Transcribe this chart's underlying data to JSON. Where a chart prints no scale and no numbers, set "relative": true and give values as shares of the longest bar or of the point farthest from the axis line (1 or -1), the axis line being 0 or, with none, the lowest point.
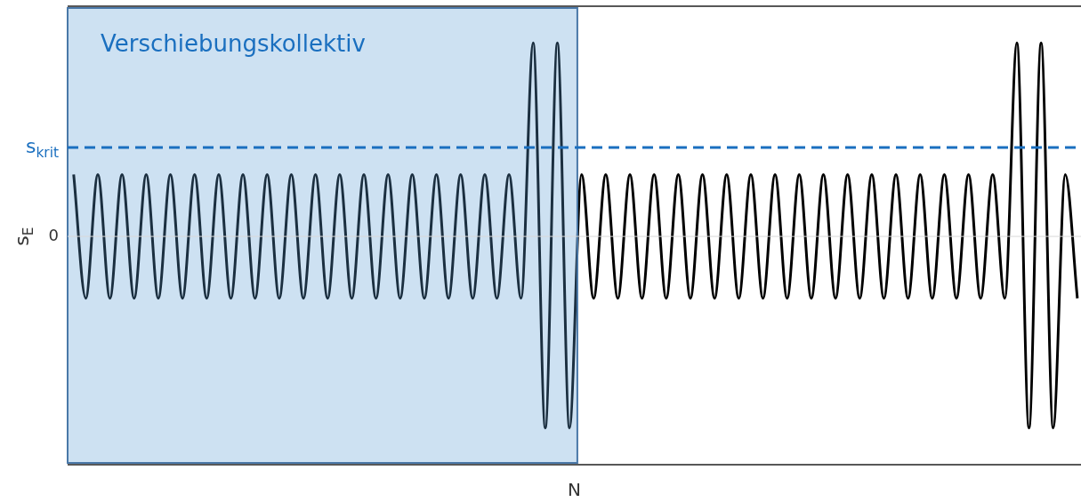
{
  "chart_data": {
    "type": "line",
    "relative": true,
    "xlabel": "N",
    "ylabel": "s$_{E}$",
    "categories": [
      null,
      null,
      null,
      null,
      null,
      null,
      null,
      null,
      null,
      null,
      null,
      null,
      null,
      null,
      null,
      null,
      null,
      null,
      null,
      null,
      null,
      null,
      null,
      null,
      null,
      null,
      null,
      null,
      null,
      null,
      null,
      null,
      null,
      null,
      null,
      null,
      null,
      null,
      null,
      null,
      null,
      null,
      null,
      null,
      null,
      null,
      null,
      null,
      null,
      null,
      null,
      null,
      null,
      null,
      null,
      null,
      null,
      null,
      null,
      null,
      null,
      null,
      null,
      null,
      null,
      null,
      null,
      null,
      null,
      null,
      null,
      null,
      null,
      null,
      null,
      null,
      null,
      null,
      null,
      null,
      null,
      null,
      null,
      null
    ],
    "series": [
      {
        "color": "#000000",
        "values": [
          0.32,
          -0.32,
          0.32,
          -0.32,
          0.32,
          -0.32,
          0.32,
          -0.32,
          0.32,
          -0.32,
          0.32,
          -0.32,
          0.32,
          -0.32,
          0.32,
          -0.32,
          0.32,
          -0.32,
          0.32,
          -0.32,
          0.32,
          -0.32,
          0.32,
          -0.32,
          0.32,
          -0.32,
          0.32,
          -0.32,
          0.32,
          -0.32,
          0.32,
          -0.32,
          0.32,
          -0.32,
          0.32,
          -0.32,
          0.32,
          -0.32,
          1,
          -0.99,
          1,
          -0.99,
          0.32,
          -0.32,
          0.32,
          -0.32,
          0.32,
          -0.32,
          0.32,
          -0.32,
          0.32,
          -0.32,
          0.32,
          -0.32,
          0.32,
          -0.32,
          0.32,
          -0.32,
          0.32,
          -0.32,
          0.32,
          -0.32,
          0.32,
          -0.32,
          0.32,
          -0.32,
          0.32,
          -0.32,
          0.32,
          -0.32,
          0.32,
          -0.32,
          0.32,
          -0.32,
          0.32,
          -0.32,
          0.32,
          -0.32,
          1,
          -0.99,
          1,
          -0.99,
          0.32,
          -0.32
        ]
      }
    ],
    "ref_lines": [
      {
        "axis": "y",
        "value": 0,
        "label": "0",
        "color": "#d9d9d9",
        "line_style": "solid"
      },
      {
        "axis": "y",
        "value": 0.46,
        "label": "s$_{krit}$",
        "color": "#1a6fbf",
        "line_style": "dashed"
      }
    ],
    "annotations": [
      "Verschiebungskollektiv"
    ],
    "line_style": "solid",
    "marker": "none",
    "legend": false
  }
}
